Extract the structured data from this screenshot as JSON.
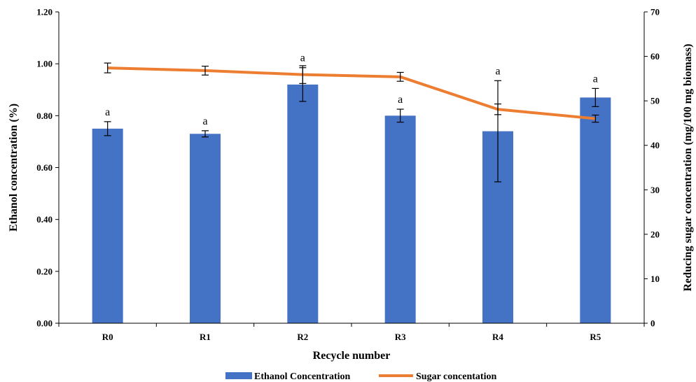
{
  "chart_data": {
    "type": "bar",
    "categories": [
      "R0",
      "R1",
      "R2",
      "R3",
      "R4",
      "R5"
    ],
    "xlabel": "Recycle number",
    "ylabel": "Ethanol concentration (%)",
    "y2label": "Reducing sugar concentration (mg/100 mg biomass)",
    "ylim": [
      0,
      1.2
    ],
    "y2lim": [
      0,
      70
    ],
    "yticks": [
      "0.00",
      "0.20",
      "0.40",
      "0.60",
      "0.80",
      "1.00",
      "1.20"
    ],
    "y2ticks": [
      "0",
      "10",
      "20",
      "30",
      "40",
      "50",
      "60",
      "70"
    ],
    "grid": false,
    "legend_position": "bottom",
    "series": [
      {
        "name": "Ethanol Concentration",
        "type": "bar",
        "axis": "left",
        "color": "#4472C4",
        "values": [
          0.75,
          0.73,
          0.92,
          0.8,
          0.74,
          0.87
        ],
        "errors": [
          0.027,
          0.012,
          0.065,
          0.025,
          0.195,
          0.035
        ],
        "labels": [
          "a",
          "a",
          "a",
          "a",
          "a",
          "a"
        ]
      },
      {
        "name": "Sugar concentation",
        "type": "line",
        "axis": "right",
        "color": "#ED7D31",
        "values": [
          57.4,
          56.8,
          55.9,
          55.4,
          48.1,
          46.0
        ],
        "errors": [
          1.1,
          1.0,
          2.0,
          1.0,
          1.2,
          0.8
        ]
      }
    ]
  }
}
